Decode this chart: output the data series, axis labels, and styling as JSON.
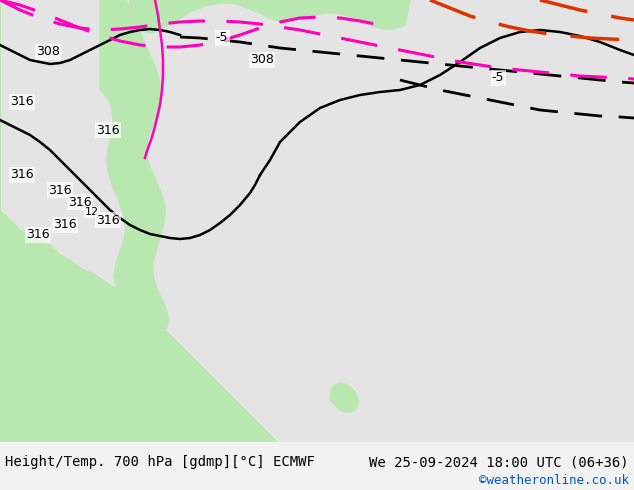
{
  "title": "Height/Temp. 700 hPa [gdmp][°C] ECMWF",
  "subtitle_left": "Height/Temp. 700 hPa [gdmp][°C] ECMWF",
  "subtitle_right": "We 25-09-2024 18:00 UTC (06+36)",
  "credit": "©weatheronline.co.uk",
  "background_map": "#d0d0d0",
  "land_color": "#b8e8b0",
  "land_color_alt": "#c8ecc0",
  "sea_color": "#e8e8e8",
  "contour_color_black": "#000000",
  "contour_color_magenta": "#ff00bb",
  "contour_color_red": "#dd4400",
  "contour_dashed_black": "#000000",
  "bottom_bar_color": "#f0f0f0",
  "font_size_bottom": 11,
  "credit_color": "#0055cc",
  "fig_width": 6.34,
  "fig_height": 4.9,
  "dpi": 100
}
